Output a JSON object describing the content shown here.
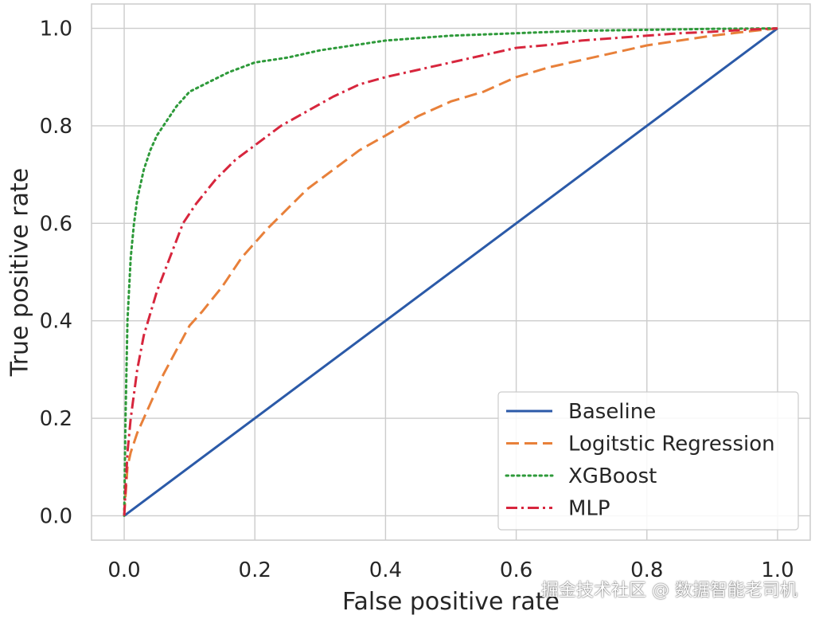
{
  "chart_data": {
    "type": "line",
    "title": "",
    "xlabel": "False positive rate",
    "ylabel": "True positive rate",
    "xlim": [
      -0.05,
      1.05
    ],
    "ylim": [
      -0.05,
      1.05
    ],
    "xticks": [
      0.0,
      0.2,
      0.4,
      0.6,
      0.8,
      1.0
    ],
    "yticks": [
      0.0,
      0.2,
      0.4,
      0.6,
      0.8,
      1.0
    ],
    "xtick_labels": [
      "0.0",
      "0.2",
      "0.4",
      "0.6",
      "0.8",
      "1.0"
    ],
    "ytick_labels": [
      "0.0",
      "0.2",
      "0.4",
      "0.6",
      "0.8",
      "1.0"
    ],
    "grid": true,
    "legend_position": "bottom-right",
    "series": [
      {
        "name": "Baseline",
        "color": "#2b5aa8",
        "dash": "solid",
        "x": [
          0.0,
          1.0
        ],
        "y": [
          0.0,
          1.0
        ]
      },
      {
        "name": "Logitstic Regression",
        "color": "#e8803a",
        "dash": "dashed",
        "x": [
          0.0,
          0.005,
          0.01,
          0.02,
          0.04,
          0.06,
          0.08,
          0.1,
          0.12,
          0.15,
          0.18,
          0.2,
          0.22,
          0.25,
          0.28,
          0.3,
          0.33,
          0.36,
          0.4,
          0.45,
          0.5,
          0.55,
          0.6,
          0.65,
          0.7,
          0.75,
          0.8,
          0.85,
          0.9,
          0.95,
          1.0
        ],
        "y": [
          0.0,
          0.1,
          0.13,
          0.17,
          0.23,
          0.29,
          0.34,
          0.39,
          0.42,
          0.47,
          0.53,
          0.56,
          0.59,
          0.63,
          0.67,
          0.69,
          0.72,
          0.75,
          0.78,
          0.82,
          0.85,
          0.87,
          0.9,
          0.92,
          0.935,
          0.95,
          0.965,
          0.975,
          0.985,
          0.993,
          1.0
        ]
      },
      {
        "name": "XGBoost",
        "color": "#2e9a3a",
        "dash": "dotted",
        "x": [
          0.0,
          0.002,
          0.005,
          0.01,
          0.015,
          0.02,
          0.03,
          0.04,
          0.05,
          0.06,
          0.08,
          0.1,
          0.13,
          0.16,
          0.2,
          0.25,
          0.3,
          0.35,
          0.4,
          0.5,
          0.6,
          0.7,
          0.8,
          0.9,
          1.0
        ],
        "y": [
          0.0,
          0.2,
          0.4,
          0.53,
          0.6,
          0.65,
          0.71,
          0.75,
          0.78,
          0.8,
          0.84,
          0.87,
          0.89,
          0.91,
          0.93,
          0.94,
          0.955,
          0.965,
          0.975,
          0.985,
          0.99,
          0.995,
          0.997,
          0.999,
          1.0
        ]
      },
      {
        "name": "MLP",
        "color": "#d7263d",
        "dash": "dashdot",
        "x": [
          0.0,
          0.005,
          0.01,
          0.02,
          0.03,
          0.05,
          0.07,
          0.09,
          0.11,
          0.14,
          0.17,
          0.2,
          0.24,
          0.28,
          0.32,
          0.36,
          0.4,
          0.45,
          0.5,
          0.55,
          0.6,
          0.65,
          0.7,
          0.75,
          0.8,
          0.85,
          0.9,
          0.95,
          1.0
        ],
        "y": [
          0.0,
          0.13,
          0.2,
          0.3,
          0.37,
          0.46,
          0.53,
          0.6,
          0.64,
          0.69,
          0.73,
          0.76,
          0.8,
          0.83,
          0.86,
          0.885,
          0.9,
          0.915,
          0.93,
          0.945,
          0.96,
          0.966,
          0.975,
          0.98,
          0.985,
          0.99,
          0.993,
          0.997,
          1.0
        ]
      }
    ]
  },
  "watermark": "掘金技术社区 @ 数据智能老司机"
}
